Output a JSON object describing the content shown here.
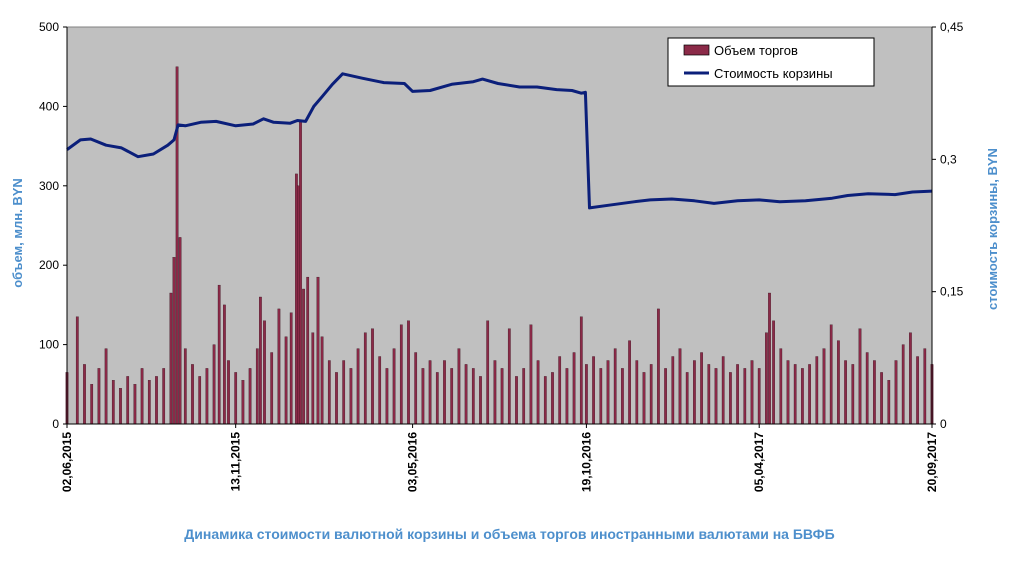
{
  "chart_data": {
    "type": "bar+line",
    "title": "Динамика стоимости валютной корзины и объема торгов иностранными валютами на БВФБ",
    "ylabel_left": "объем, млн. BYN",
    "ylabel_right": "стоимость корзины, BYN",
    "ylim_left": [
      0,
      500
    ],
    "ylim_right": [
      0,
      0.45
    ],
    "yticks_left": [
      "0",
      "100",
      "200",
      "300",
      "400",
      "500"
    ],
    "yticks_right": [
      "0",
      "0,15",
      "0,3",
      "0,45"
    ],
    "x_range": [
      "2015-06-02",
      "2017-09-20"
    ],
    "xticks": [
      {
        "date": "2015-06-02",
        "label": "02,06,2015"
      },
      {
        "date": "2015-11-13",
        "label": "13,11,2015"
      },
      {
        "date": "2016-05-03",
        "label": "03,05,2016"
      },
      {
        "date": "2016-10-19",
        "label": "19,10,2016"
      },
      {
        "date": "2017-04-05",
        "label": "05,04,2017"
      },
      {
        "date": "2017-09-20",
        "label": "20,09,2017"
      }
    ],
    "legend": {
      "position": "top-right",
      "entries": [
        "Объем торгов",
        "Стоимость корзины"
      ]
    },
    "grid": false,
    "series": [
      {
        "name": "Объем торгов",
        "type": "bar",
        "color": "#8b2a48",
        "points": [
          [
            "2015-06-02",
            65
          ],
          [
            "2015-06-12",
            135
          ],
          [
            "2015-06-19",
            75
          ],
          [
            "2015-06-26",
            50
          ],
          [
            "2015-07-03",
            70
          ],
          [
            "2015-07-10",
            95
          ],
          [
            "2015-07-17",
            55
          ],
          [
            "2015-07-24",
            45
          ],
          [
            "2015-07-31",
            60
          ],
          [
            "2015-08-07",
            50
          ],
          [
            "2015-08-14",
            70
          ],
          [
            "2015-08-21",
            55
          ],
          [
            "2015-08-28",
            60
          ],
          [
            "2015-09-04",
            70
          ],
          [
            "2015-09-11",
            165
          ],
          [
            "2015-09-14",
            210
          ],
          [
            "2015-09-17",
            450
          ],
          [
            "2015-09-20",
            235
          ],
          [
            "2015-09-25",
            95
          ],
          [
            "2015-10-02",
            75
          ],
          [
            "2015-10-09",
            60
          ],
          [
            "2015-10-16",
            70
          ],
          [
            "2015-10-23",
            100
          ],
          [
            "2015-10-28",
            175
          ],
          [
            "2015-11-02",
            150
          ],
          [
            "2015-11-06",
            80
          ],
          [
            "2015-11-13",
            65
          ],
          [
            "2015-11-20",
            55
          ],
          [
            "2015-11-27",
            70
          ],
          [
            "2015-12-04",
            95
          ],
          [
            "2015-12-07",
            160
          ],
          [
            "2015-12-11",
            130
          ],
          [
            "2015-12-18",
            90
          ],
          [
            "2015-12-25",
            145
          ],
          [
            "2016-01-01",
            110
          ],
          [
            "2016-01-06",
            140
          ],
          [
            "2016-01-11",
            315
          ],
          [
            "2016-01-13",
            300
          ],
          [
            "2016-01-15",
            380
          ],
          [
            "2016-01-18",
            170
          ],
          [
            "2016-01-22",
            185
          ],
          [
            "2016-01-27",
            115
          ],
          [
            "2016-02-01",
            185
          ],
          [
            "2016-02-05",
            110
          ],
          [
            "2016-02-12",
            80
          ],
          [
            "2016-02-19",
            65
          ],
          [
            "2016-02-26",
            80
          ],
          [
            "2016-03-04",
            70
          ],
          [
            "2016-03-11",
            95
          ],
          [
            "2016-03-18",
            115
          ],
          [
            "2016-03-25",
            120
          ],
          [
            "2016-04-01",
            85
          ],
          [
            "2016-04-08",
            70
          ],
          [
            "2016-04-15",
            95
          ],
          [
            "2016-04-22",
            125
          ],
          [
            "2016-04-29",
            130
          ],
          [
            "2016-05-06",
            90
          ],
          [
            "2016-05-13",
            70
          ],
          [
            "2016-05-20",
            80
          ],
          [
            "2016-05-27",
            65
          ],
          [
            "2016-06-03",
            80
          ],
          [
            "2016-06-10",
            70
          ],
          [
            "2016-06-17",
            95
          ],
          [
            "2016-06-24",
            75
          ],
          [
            "2016-07-01",
            70
          ],
          [
            "2016-07-08",
            60
          ],
          [
            "2016-07-15",
            130
          ],
          [
            "2016-07-22",
            80
          ],
          [
            "2016-07-29",
            70
          ],
          [
            "2016-08-05",
            120
          ],
          [
            "2016-08-12",
            60
          ],
          [
            "2016-08-19",
            70
          ],
          [
            "2016-08-26",
            125
          ],
          [
            "2016-09-02",
            80
          ],
          [
            "2016-09-09",
            60
          ],
          [
            "2016-09-16",
            65
          ],
          [
            "2016-09-23",
            85
          ],
          [
            "2016-09-30",
            70
          ],
          [
            "2016-10-07",
            90
          ],
          [
            "2016-10-14",
            135
          ],
          [
            "2016-10-19",
            75
          ],
          [
            "2016-10-26",
            85
          ],
          [
            "2016-11-02",
            70
          ],
          [
            "2016-11-09",
            80
          ],
          [
            "2016-11-16",
            95
          ],
          [
            "2016-11-23",
            70
          ],
          [
            "2016-11-30",
            105
          ],
          [
            "2016-12-07",
            80
          ],
          [
            "2016-12-14",
            65
          ],
          [
            "2016-12-21",
            75
          ],
          [
            "2016-12-28",
            145
          ],
          [
            "2017-01-04",
            70
          ],
          [
            "2017-01-11",
            85
          ],
          [
            "2017-01-18",
            95
          ],
          [
            "2017-01-25",
            65
          ],
          [
            "2017-02-01",
            80
          ],
          [
            "2017-02-08",
            90
          ],
          [
            "2017-02-15",
            75
          ],
          [
            "2017-02-22",
            70
          ],
          [
            "2017-03-01",
            85
          ],
          [
            "2017-03-08",
            65
          ],
          [
            "2017-03-15",
            75
          ],
          [
            "2017-03-22",
            70
          ],
          [
            "2017-03-29",
            80
          ],
          [
            "2017-04-05",
            70
          ],
          [
            "2017-04-12",
            115
          ],
          [
            "2017-04-15",
            165
          ],
          [
            "2017-04-19",
            130
          ],
          [
            "2017-04-26",
            95
          ],
          [
            "2017-05-03",
            80
          ],
          [
            "2017-05-10",
            75
          ],
          [
            "2017-05-17",
            70
          ],
          [
            "2017-05-24",
            75
          ],
          [
            "2017-05-31",
            85
          ],
          [
            "2017-06-07",
            95
          ],
          [
            "2017-06-14",
            125
          ],
          [
            "2017-06-21",
            105
          ],
          [
            "2017-06-28",
            80
          ],
          [
            "2017-07-05",
            75
          ],
          [
            "2017-07-12",
            120
          ],
          [
            "2017-07-19",
            90
          ],
          [
            "2017-07-26",
            80
          ],
          [
            "2017-08-02",
            65
          ],
          [
            "2017-08-09",
            55
          ],
          [
            "2017-08-16",
            80
          ],
          [
            "2017-08-23",
            100
          ],
          [
            "2017-08-30",
            115
          ],
          [
            "2017-09-06",
            85
          ],
          [
            "2017-09-13",
            95
          ],
          [
            "2017-09-20",
            75
          ]
        ]
      },
      {
        "name": "Стоимость корзины",
        "type": "line",
        "color": "#0b1f7a",
        "points": [
          [
            "2015-06-02",
            0.311
          ],
          [
            "2015-06-15",
            0.322
          ],
          [
            "2015-06-25",
            0.323
          ],
          [
            "2015-07-10",
            0.316
          ],
          [
            "2015-07-25",
            0.313
          ],
          [
            "2015-08-10",
            0.303
          ],
          [
            "2015-08-25",
            0.306
          ],
          [
            "2015-09-08",
            0.316
          ],
          [
            "2015-09-14",
            0.322
          ],
          [
            "2015-09-18",
            0.339
          ],
          [
            "2015-09-25",
            0.338
          ],
          [
            "2015-10-10",
            0.342
          ],
          [
            "2015-10-25",
            0.343
          ],
          [
            "2015-11-13",
            0.338
          ],
          [
            "2015-11-30",
            0.34
          ],
          [
            "2015-12-10",
            0.346
          ],
          [
            "2015-12-20",
            0.342
          ],
          [
            "2016-01-05",
            0.341
          ],
          [
            "2016-01-12",
            0.344
          ],
          [
            "2016-01-20",
            0.343
          ],
          [
            "2016-01-28",
            0.36
          ],
          [
            "2016-02-05",
            0.371
          ],
          [
            "2016-02-15",
            0.385
          ],
          [
            "2016-02-25",
            0.397
          ],
          [
            "2016-03-15",
            0.392
          ],
          [
            "2016-04-05",
            0.387
          ],
          [
            "2016-04-25",
            0.386
          ],
          [
            "2016-05-03",
            0.377
          ],
          [
            "2016-05-20",
            0.378
          ],
          [
            "2016-06-10",
            0.385
          ],
          [
            "2016-07-01",
            0.388
          ],
          [
            "2016-07-10",
            0.391
          ],
          [
            "2016-07-25",
            0.386
          ],
          [
            "2016-08-15",
            0.382
          ],
          [
            "2016-09-01",
            0.382
          ],
          [
            "2016-09-20",
            0.379
          ],
          [
            "2016-10-05",
            0.378
          ],
          [
            "2016-10-14",
            0.375
          ],
          [
            "2016-10-18",
            0.376
          ],
          [
            "2016-10-22",
            0.245
          ],
          [
            "2016-11-10",
            0.248
          ],
          [
            "2016-12-05",
            0.252
          ],
          [
            "2016-12-20",
            0.254
          ],
          [
            "2017-01-10",
            0.255
          ],
          [
            "2017-02-01",
            0.253
          ],
          [
            "2017-02-20",
            0.25
          ],
          [
            "2017-03-15",
            0.253
          ],
          [
            "2017-04-05",
            0.254
          ],
          [
            "2017-04-25",
            0.252
          ],
          [
            "2017-05-20",
            0.253
          ],
          [
            "2017-06-15",
            0.256
          ],
          [
            "2017-06-30",
            0.259
          ],
          [
            "2017-07-20",
            0.261
          ],
          [
            "2017-08-15",
            0.26
          ],
          [
            "2017-09-01",
            0.263
          ],
          [
            "2017-09-20",
            0.264
          ]
        ]
      }
    ]
  }
}
